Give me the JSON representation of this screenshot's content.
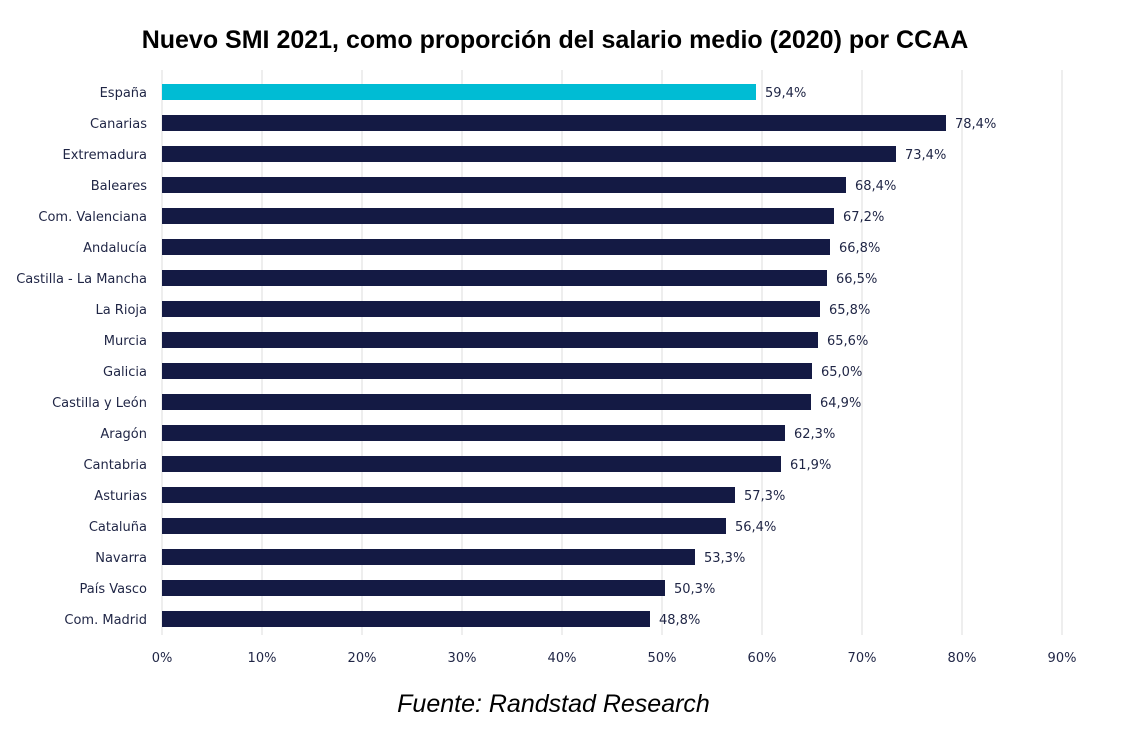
{
  "title": "Nuevo SMI 2021, como proporción del salario medio (2020) por CCAA",
  "source": "Fuente: Randstad Research",
  "chart_data": {
    "type": "bar",
    "orientation": "horizontal",
    "title": "Nuevo SMI 2021, como proporción del salario medio (2020) por CCAA",
    "xlabel": "",
    "ylabel": "",
    "xlim": [
      0,
      90
    ],
    "x_ticks": [
      "0%",
      "10%",
      "20%",
      "30%",
      "40%",
      "50%",
      "60%",
      "70%",
      "80%",
      "90%"
    ],
    "grid": "vertical",
    "categories": [
      "España",
      "Canarias",
      "Extremadura",
      "Baleares",
      "Com. Valenciana",
      "Andalucía",
      "Castilla - La Mancha",
      "La Rioja",
      "Murcia",
      "Galicia",
      "Castilla y León",
      "Aragón",
      "Cantabria",
      "Asturias",
      "Cataluña",
      "Navarra",
      "País Vasco",
      "Com. Madrid"
    ],
    "values": [
      59.4,
      78.4,
      73.4,
      68.4,
      67.2,
      66.8,
      66.5,
      65.8,
      65.6,
      65.0,
      64.9,
      62.3,
      61.9,
      57.3,
      56.4,
      53.3,
      50.3,
      48.8
    ],
    "value_labels": [
      "59,4%",
      "78,4%",
      "73,4%",
      "68,4%",
      "67,2%",
      "66,8%",
      "66,5%",
      "65,8%",
      "65,6%",
      "65,0%",
      "64,9%",
      "62,3%",
      "61,9%",
      "57,3%",
      "56,4%",
      "53,3%",
      "50,3%",
      "48,8%"
    ],
    "colors": {
      "highlight": "#00bcd4",
      "bar": "#141a44",
      "grid": "#dcdcdc",
      "text": "#1f2545"
    },
    "highlight_category": "España"
  }
}
